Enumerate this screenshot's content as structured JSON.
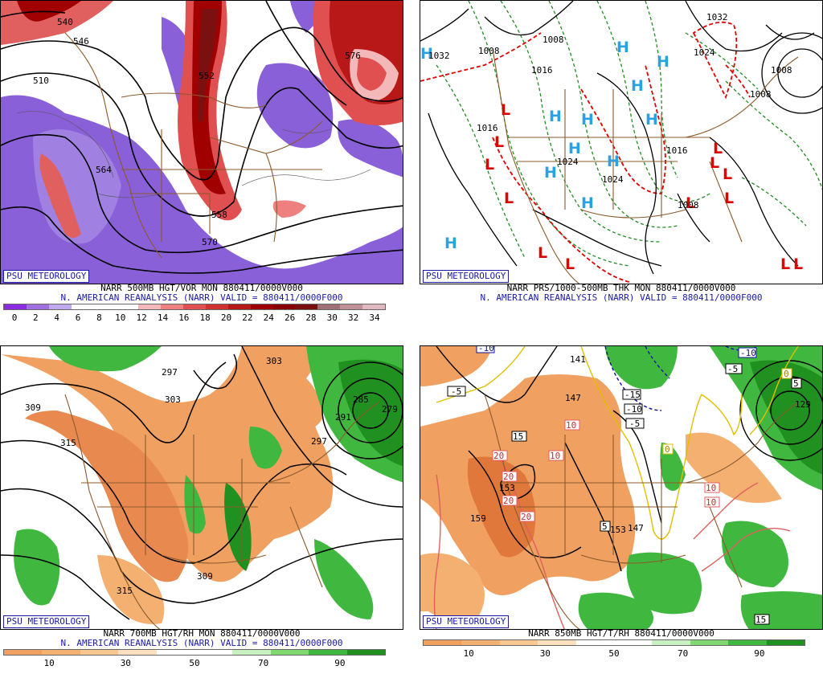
{
  "panels": [
    {
      "psu": "PSU METEOROLOGY",
      "caption1": "NARR 500MB HGT/VOR MON 880411/0000V000",
      "caption2": "N. AMERICAN REANALYSIS (NARR) VALID = 880411/0000F000",
      "contour_labels": [
        "540",
        "546",
        "510",
        "564",
        "552",
        "558",
        "570",
        "576"
      ],
      "colorbar_colors": [
        "#8a2be2",
        "#a070e0",
        "#c0a8ee",
        "#ffffff",
        "#ffffff",
        "#ffffff",
        "#f4b8b8",
        "#ee8080",
        "#e05050",
        "#d03030",
        "#b81818",
        "#a00000",
        "#880000",
        "#7a1010",
        "#a07078",
        "#c09098",
        "#e0b8c0"
      ],
      "colorbar_ticks": [
        "0",
        "2",
        "4",
        "6",
        "8",
        "10",
        "12",
        "14",
        "16",
        "18",
        "20",
        "22",
        "24",
        "26",
        "28",
        "30",
        "32",
        "34"
      ]
    },
    {
      "psu": "PSU METEOROLOGY",
      "caption1": "NARR PRS/1000-500MB THK MON 880411/0000V000",
      "caption2": "N. AMERICAN REANALYSIS (NARR) VALID = 880411/0000F000",
      "contour_labels": [
        "1032",
        "1008",
        "1016",
        "1024",
        "1008",
        "1016",
        "1016",
        "1008",
        "1024",
        "1024",
        "1008",
        "1032",
        "1008"
      ],
      "highs": [
        "H",
        "H",
        "H",
        "H",
        "H",
        "H",
        "H",
        "H",
        "H",
        "H",
        "H",
        "H"
      ],
      "lows": [
        "L",
        "L",
        "L",
        "L",
        "L",
        "L",
        "L",
        "L",
        "L",
        "L",
        "L",
        "L",
        "L"
      ]
    },
    {
      "psu": "PSU METEOROLOGY",
      "caption1": "NARR 700MB HGT/RH MON 880411/0000V000",
      "caption2": "N. AMERICAN REANALYSIS (NARR) VALID = 880411/0000F000",
      "contour_labels": [
        "309",
        "303",
        "297",
        "303",
        "315",
        "285",
        "279",
        "291",
        "297",
        "309",
        "315"
      ],
      "colorbar_colors": [
        "#f0a060",
        "#f4b070",
        "#f8c890",
        "#fce0c0",
        "#ffffff",
        "#ffffff",
        "#c8f0c0",
        "#80d870",
        "#40b840",
        "#209020"
      ],
      "colorbar_ticks": [
        "10",
        "30",
        "50",
        "70",
        "90"
      ]
    },
    {
      "psu": "PSU METEOROLOGY",
      "caption1": "NARR 850MB HGT/T/RH 880411/0000V000",
      "caption2": "",
      "contour_labels": [
        "141",
        "147",
        "153",
        "159",
        "153",
        "147",
        "129"
      ],
      "temp_boxes": [
        "-10",
        "-5",
        "-15",
        "-10",
        "-5",
        "-10",
        "-5",
        "0",
        "5",
        "15",
        "10",
        "10",
        "20",
        "20",
        "20",
        "20",
        "0",
        "10",
        "10",
        "5",
        "15"
      ],
      "colorbar_colors": [
        "#f0a060",
        "#f4b070",
        "#f8c890",
        "#fce0c0",
        "#ffffff",
        "#ffffff",
        "#c8f0c0",
        "#80d870",
        "#40b840",
        "#209020"
      ],
      "colorbar_ticks": [
        "10",
        "30",
        "50",
        "70",
        "90"
      ]
    }
  ]
}
